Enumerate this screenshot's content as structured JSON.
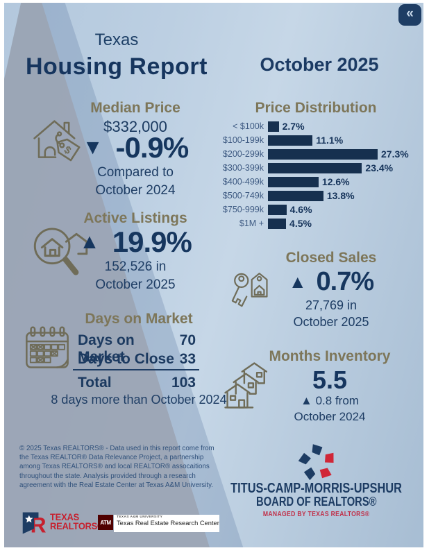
{
  "header": {
    "pretitle": "Texas",
    "title": "Housing Report",
    "date": "October 2025",
    "collapse_icon": "«"
  },
  "median_price": {
    "title": "Median Price",
    "value": "$332,000",
    "arrow": "▼",
    "change": "-0.9%",
    "note_line1": "Compared to",
    "note_line2": "October 2024"
  },
  "chart_data": {
    "type": "bar",
    "orientation": "horizontal",
    "title": "Price Distribution",
    "categories": [
      "< $100k",
      "$100-199k",
      "$200-299k",
      "$300-399k",
      "$400-499k",
      "$500-749k",
      "$750-999k",
      "$1M +"
    ],
    "values": [
      2.7,
      11.1,
      27.3,
      23.4,
      12.6,
      13.8,
      4.6,
      4.5
    ],
    "value_labels": [
      "2.7%",
      "11.1%",
      "27.3%",
      "23.4%",
      "12.6%",
      "13.8%",
      "4.6%",
      "4.5%"
    ],
    "xlim": [
      0,
      30
    ],
    "bar_color": "#16304f",
    "grid": false,
    "legend": false
  },
  "active_listings": {
    "title": "Active Listings",
    "arrow": "▲",
    "change": "19.9%",
    "note_line1": "152,526 in",
    "note_line2": "October 2025"
  },
  "closed_sales": {
    "title": "Closed Sales",
    "arrow": "▲",
    "change": "0.7%",
    "note_line1": "27,769 in",
    "note_line2": "October 2025"
  },
  "days_on_market": {
    "title": "Days on Market",
    "rows": [
      {
        "label": "Days on Market",
        "value": "70"
      },
      {
        "label": "Days to Close",
        "value": "33"
      }
    ],
    "total_label": "Total",
    "total_value": "103",
    "note": "8 days more than October 2024"
  },
  "months_inventory": {
    "title": "Months Inventory",
    "value": "5.5",
    "note_line1": "▲ 0.8 from",
    "note_line2": "October 2024"
  },
  "footer": {
    "disclaimer": "© 2025 Texas REALTORS® - Data used in this report come from the Texas REALTOR® Data Relevance Project, a partnership among Texas REALTORS® and local REALTOR® assocaitions throughout the state. Analysis provided through a research agreement with the Real Estate Center at Texas A&M University.",
    "texas_realtors": {
      "line1": "TEXAS",
      "line2": "REALTORS®"
    },
    "tamu": {
      "monogram": "ATM",
      "line1": "TEXAS A&M UNIVERSITY",
      "line2": "Texas Real Estate Research Center"
    },
    "board": {
      "line1": "TITUS-CAMP-MORRIS-UPSHUR",
      "line2": "BOARD OF REALTORS®",
      "line3": "MANAGED BY TEXAS REALTORS®"
    }
  },
  "colors": {
    "navy": "#1b3a60",
    "olive": "#7d7659",
    "red": "#c6202e",
    "maroon": "#500000",
    "bar": "#16304f"
  }
}
